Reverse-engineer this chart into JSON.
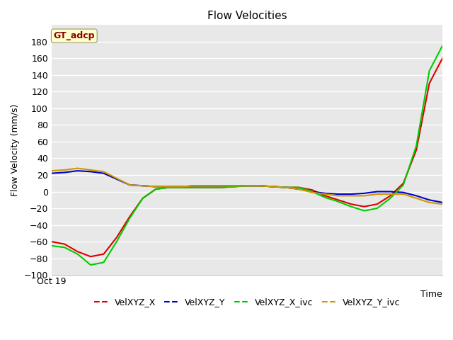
{
  "title": "Flow Velocities",
  "xlabel": "Time",
  "ylabel": "Flow Velocity (mm/s)",
  "ylim": [
    -100,
    200
  ],
  "yticks": [
    -100,
    -80,
    -60,
    -40,
    -20,
    0,
    20,
    40,
    60,
    80,
    100,
    120,
    140,
    160,
    180
  ],
  "xtick_label": "Oct 19",
  "annotation_text": "GT_adcp",
  "annotation_color": "#8B0000",
  "annotation_bg": "#FFFFCC",
  "bg_color": "#E8E8E8",
  "legend_entries": [
    "VelXYZ_X",
    "VelXYZ_Y",
    "VelXYZ_X_ivc",
    "VelXYZ_Y_ivc"
  ],
  "line_colors": [
    "#DD0000",
    "#0000CC",
    "#00CC00",
    "#CC9900"
  ],
  "x": [
    0,
    1,
    2,
    3,
    4,
    5,
    6,
    7,
    8,
    9,
    10,
    11,
    12,
    13,
    14,
    15,
    16,
    17,
    18,
    19,
    20,
    21,
    22,
    23,
    24,
    25,
    26,
    27,
    28,
    29,
    30
  ],
  "VelXYZ_X": [
    -60,
    -63,
    -72,
    -78,
    -75,
    -55,
    -30,
    -8,
    3,
    5,
    5,
    5,
    5,
    5,
    6,
    7,
    7,
    6,
    5,
    5,
    2,
    -5,
    -10,
    -15,
    -18,
    -15,
    -5,
    10,
    50,
    130,
    160
  ],
  "VelXYZ_Y": [
    22,
    23,
    25,
    24,
    22,
    15,
    8,
    7,
    6,
    6,
    6,
    7,
    7,
    7,
    7,
    7,
    7,
    6,
    5,
    3,
    0,
    -2,
    -3,
    -3,
    -2,
    0,
    0,
    -1,
    -5,
    -10,
    -13
  ],
  "VelXYZ_X_ivc": [
    -65,
    -67,
    -75,
    -88,
    -85,
    -60,
    -32,
    -8,
    3,
    5,
    5,
    5,
    5,
    5,
    6,
    7,
    7,
    6,
    5,
    5,
    0,
    -7,
    -12,
    -18,
    -23,
    -20,
    -8,
    8,
    55,
    145,
    175
  ],
  "VelXYZ_Y_ivc": [
    25,
    26,
    28,
    26,
    24,
    16,
    8,
    7,
    6,
    6,
    6,
    7,
    7,
    7,
    7,
    7,
    7,
    6,
    5,
    3,
    -1,
    -3,
    -5,
    -5,
    -5,
    -3,
    -3,
    -3,
    -8,
    -13,
    -15
  ]
}
